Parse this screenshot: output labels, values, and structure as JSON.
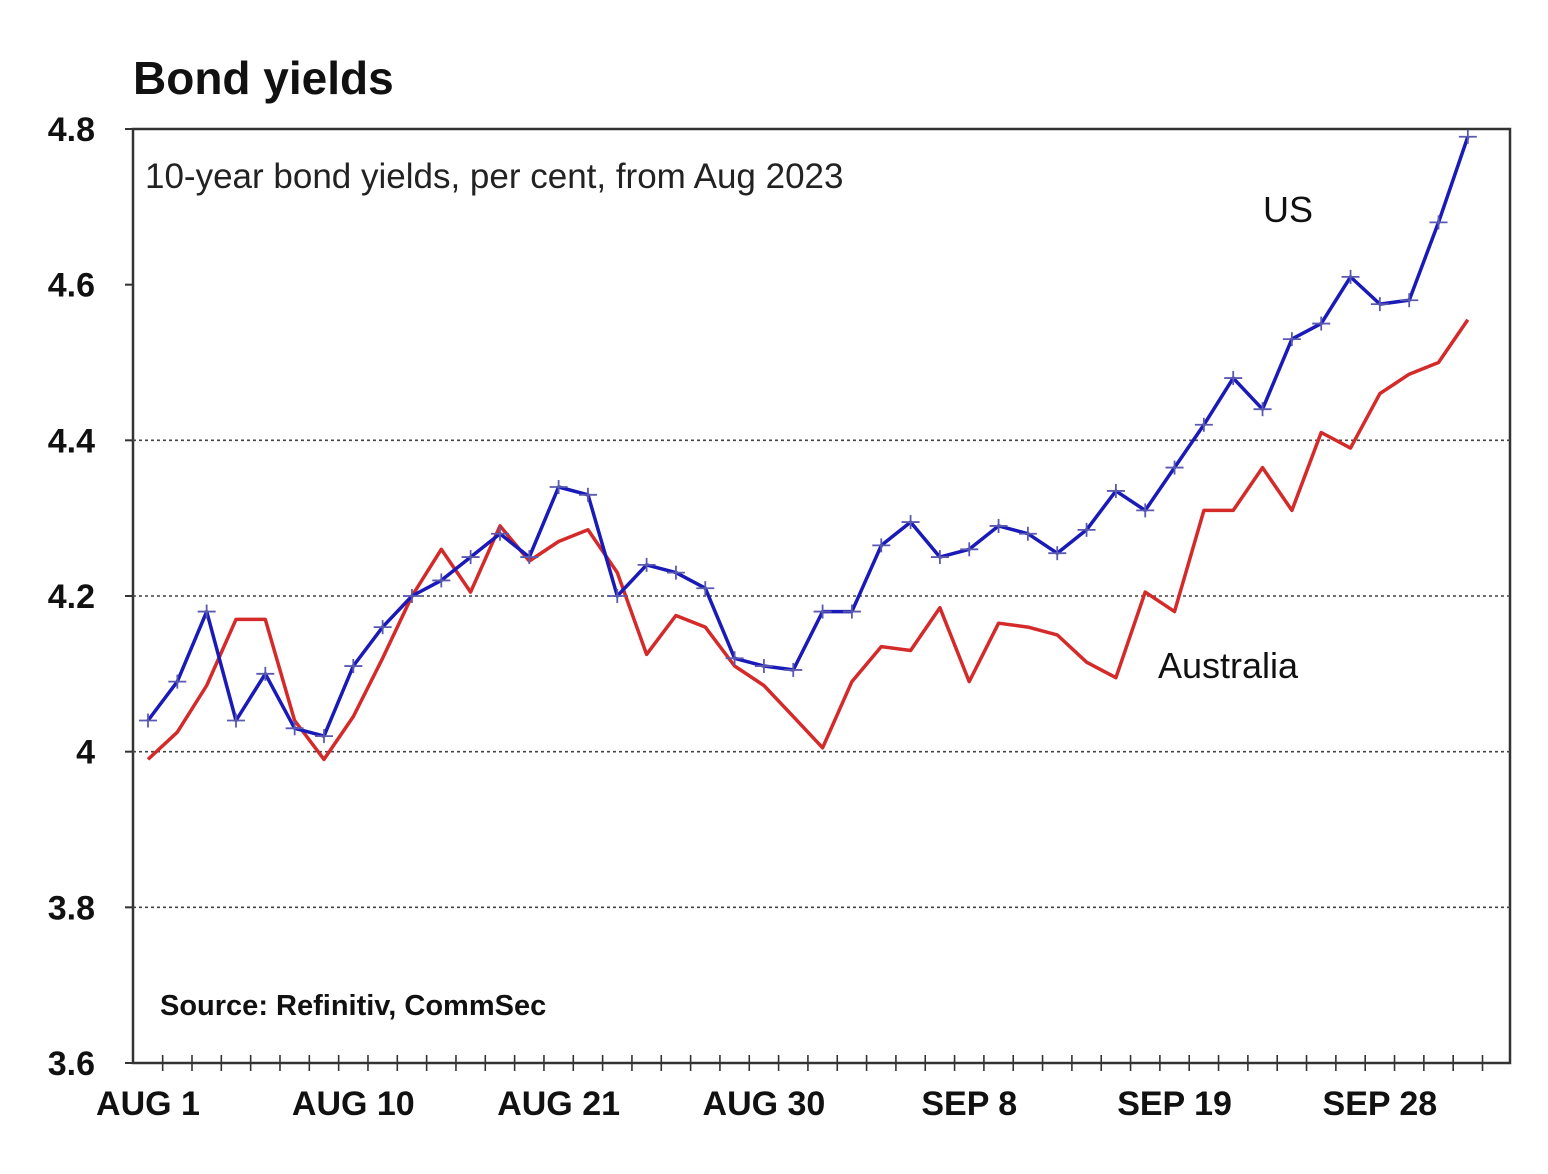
{
  "chart_data": {
    "type": "line",
    "title": "Bond yields",
    "subtitle": "10-year bond yields, per cent, from Aug 2023",
    "source": "Source: Refinitiv, CommSec",
    "xlabel": "",
    "ylabel": "",
    "ylim": [
      3.6,
      4.8
    ],
    "yticks": [
      3.6,
      3.8,
      4,
      4.2,
      4.4,
      4.6,
      4.8
    ],
    "ytick_labels": [
      "3.6",
      "3.8",
      "4",
      "4.2",
      "4.4",
      "4.6",
      "4.8"
    ],
    "grid": "horizontal dotted at 3.8, 4, 4.2, 4.4",
    "x": [
      "2023-08-01",
      "2023-08-02",
      "2023-08-03",
      "2023-08-04",
      "2023-08-07",
      "2023-08-08",
      "2023-08-09",
      "2023-08-10",
      "2023-08-11",
      "2023-08-14",
      "2023-08-15",
      "2023-08-16",
      "2023-08-17",
      "2023-08-18",
      "2023-08-21",
      "2023-08-22",
      "2023-08-23",
      "2023-08-24",
      "2023-08-25",
      "2023-08-28",
      "2023-08-29",
      "2023-08-30",
      "2023-08-31",
      "2023-09-01",
      "2023-09-04",
      "2023-09-05",
      "2023-09-06",
      "2023-09-07",
      "2023-09-08",
      "2023-09-11",
      "2023-09-12",
      "2023-09-13",
      "2023-09-14",
      "2023-09-15",
      "2023-09-18",
      "2023-09-19",
      "2023-09-20",
      "2023-09-21",
      "2023-09-22",
      "2023-09-25",
      "2023-09-26",
      "2023-09-27",
      "2023-09-28",
      "2023-09-29",
      "2023-10-02",
      "2023-10-03"
    ],
    "xtick_labels": [
      {
        "x": "2023-08-01",
        "label": "AUG 1"
      },
      {
        "x": "2023-08-10",
        "label": "AUG 10"
      },
      {
        "x": "2023-08-21",
        "label": "AUG 21"
      },
      {
        "x": "2023-08-30",
        "label": "AUG 30"
      },
      {
        "x": "2023-09-08",
        "label": "SEP 8"
      },
      {
        "x": "2023-09-19",
        "label": "SEP 19"
      },
      {
        "x": "2023-09-28",
        "label": "SEP 28"
      }
    ],
    "series": [
      {
        "name": "US",
        "color": "#1a1ab8",
        "marker": "cross",
        "values": [
          4.04,
          4.09,
          4.18,
          4.04,
          4.1,
          4.03,
          4.02,
          4.11,
          4.16,
          4.2,
          4.22,
          4.25,
          4.28,
          4.25,
          4.34,
          4.33,
          4.2,
          4.24,
          4.23,
          4.21,
          4.12,
          4.11,
          4.105,
          4.18,
          4.18,
          4.265,
          4.295,
          4.25,
          4.26,
          4.29,
          4.28,
          4.255,
          4.285,
          4.335,
          4.31,
          4.365,
          4.42,
          4.48,
          4.44,
          4.53,
          4.55,
          4.61,
          4.575,
          4.58,
          4.68,
          4.79
        ]
      },
      {
        "name": "Australia",
        "color": "#d42a2a",
        "marker": "none",
        "values": [
          3.99,
          4.025,
          4.085,
          4.17,
          4.17,
          4.04,
          3.99,
          4.045,
          4.12,
          4.2,
          4.26,
          4.205,
          4.29,
          4.245,
          4.27,
          4.285,
          4.23,
          4.125,
          4.175,
          4.16,
          4.11,
          4.085,
          4.045,
          4.005,
          4.09,
          4.135,
          4.13,
          4.185,
          4.09,
          4.165,
          4.16,
          4.15,
          4.115,
          4.095,
          4.205,
          4.18,
          4.31,
          4.31,
          4.365,
          4.31,
          4.41,
          4.39,
          4.46,
          4.485,
          4.5,
          4.555
        ]
      }
    ]
  }
}
